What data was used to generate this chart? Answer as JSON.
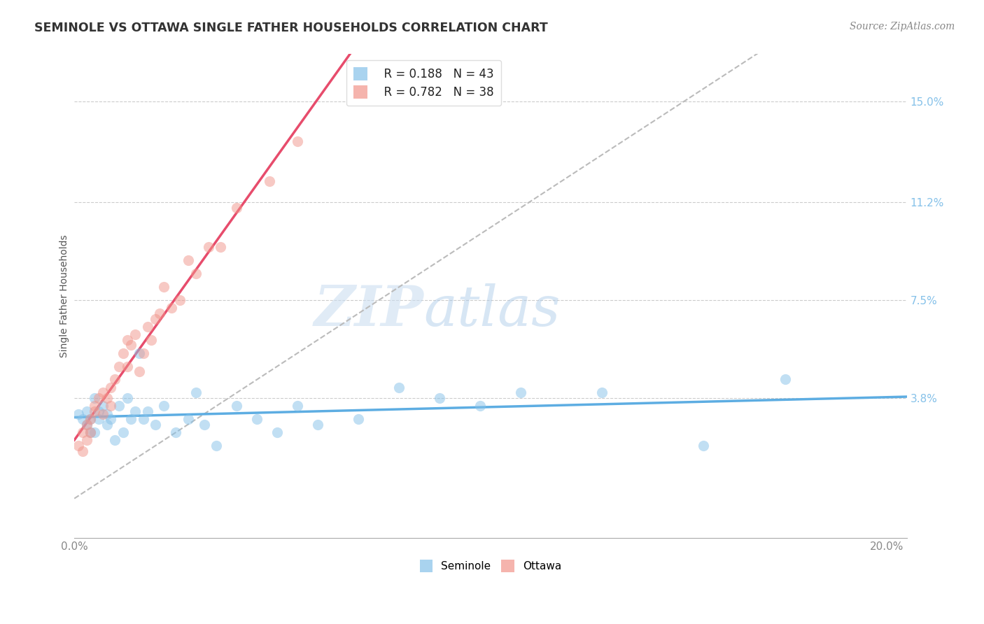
{
  "title": "SEMINOLE VS OTTAWA SINGLE FATHER HOUSEHOLDS CORRELATION CHART",
  "source": "Source: ZipAtlas.com",
  "ylabel": "Single Father Households",
  "xlim": [
    0.0,
    0.205
  ],
  "ylim": [
    -0.015,
    0.168
  ],
  "ytick_positions": [
    0.038,
    0.075,
    0.112,
    0.15
  ],
  "ytick_labels": [
    "3.8%",
    "7.5%",
    "11.2%",
    "15.0%"
  ],
  "watermark_zip": "ZIP",
  "watermark_atlas": "atlas",
  "seminole_R": 0.188,
  "seminole_N": 43,
  "ottawa_R": 0.782,
  "ottawa_N": 38,
  "seminole_color": "#85C1E9",
  "ottawa_color": "#F1948A",
  "trendline_seminole_color": "#5DADE2",
  "trendline_ottawa_color": "#E74C6C",
  "trendline_dashed_color": "#BBBBBB",
  "seminole_x": [
    0.001,
    0.002,
    0.003,
    0.003,
    0.004,
    0.004,
    0.005,
    0.005,
    0.006,
    0.006,
    0.007,
    0.008,
    0.008,
    0.009,
    0.01,
    0.011,
    0.012,
    0.013,
    0.014,
    0.015,
    0.016,
    0.017,
    0.018,
    0.02,
    0.022,
    0.025,
    0.028,
    0.03,
    0.032,
    0.035,
    0.04,
    0.045,
    0.05,
    0.055,
    0.06,
    0.07,
    0.08,
    0.09,
    0.1,
    0.11,
    0.13,
    0.155,
    0.175
  ],
  "seminole_y": [
    0.032,
    0.03,
    0.028,
    0.033,
    0.03,
    0.025,
    0.038,
    0.025,
    0.033,
    0.03,
    0.035,
    0.028,
    0.032,
    0.03,
    0.022,
    0.035,
    0.025,
    0.038,
    0.03,
    0.033,
    0.055,
    0.03,
    0.033,
    0.028,
    0.035,
    0.025,
    0.03,
    0.04,
    0.028,
    0.02,
    0.035,
    0.03,
    0.025,
    0.035,
    0.028,
    0.03,
    0.042,
    0.038,
    0.035,
    0.04,
    0.04,
    0.02,
    0.045
  ],
  "ottawa_x": [
    0.001,
    0.002,
    0.002,
    0.003,
    0.003,
    0.004,
    0.004,
    0.005,
    0.005,
    0.006,
    0.007,
    0.007,
    0.008,
    0.009,
    0.009,
    0.01,
    0.011,
    0.012,
    0.013,
    0.013,
    0.014,
    0.015,
    0.016,
    0.017,
    0.018,
    0.019,
    0.02,
    0.021,
    0.022,
    0.024,
    0.026,
    0.028,
    0.03,
    0.033,
    0.036,
    0.04,
    0.048,
    0.055
  ],
  "ottawa_y": [
    0.02,
    0.025,
    0.018,
    0.028,
    0.022,
    0.03,
    0.025,
    0.033,
    0.035,
    0.038,
    0.032,
    0.04,
    0.038,
    0.042,
    0.035,
    0.045,
    0.05,
    0.055,
    0.05,
    0.06,
    0.058,
    0.062,
    0.048,
    0.055,
    0.065,
    0.06,
    0.068,
    0.07,
    0.08,
    0.072,
    0.075,
    0.09,
    0.085,
    0.095,
    0.095,
    0.11,
    0.12,
    0.135
  ]
}
